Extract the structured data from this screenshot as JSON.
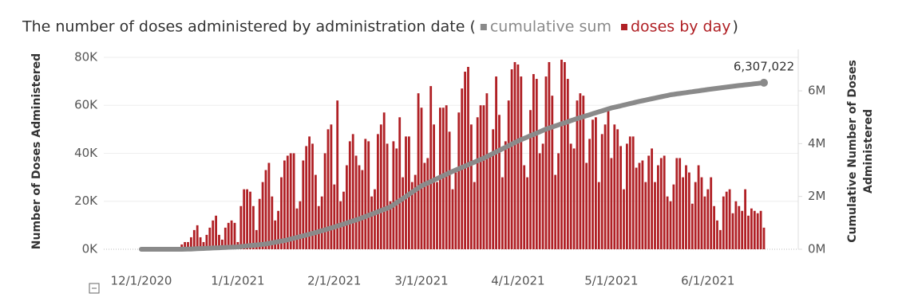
{
  "chart_data": {
    "type": "bar_line",
    "title": "The number of doses administered by administration date (",
    "title_close": ")",
    "ylabel": "Number of Doses Administered",
    "y2label": [
      "Cumulative Number of Doses",
      "Administered"
    ],
    "ylim": [
      0,
      83300
    ],
    "yticks": [
      {
        "value": 0,
        "label": "0K"
      },
      {
        "value": 20000,
        "label": "20K"
      },
      {
        "value": 40000,
        "label": "40K"
      },
      {
        "value": 60000,
        "label": "60K"
      },
      {
        "value": 80000,
        "label": "80K"
      }
    ],
    "y2lim": [
      0,
      7570000
    ],
    "y2ticks": [
      {
        "value": 0,
        "label": "0M"
      },
      {
        "value": 2000000,
        "label": "2M"
      },
      {
        "value": 4000000,
        "label": "4M"
      },
      {
        "value": 6000000,
        "label": "6M"
      }
    ],
    "grid": true,
    "xticks": [
      "12/1/2020",
      "1/1/2021",
      "2/1/2021",
      "3/1/2021",
      "4/1/2021",
      "5/1/2021",
      "6/1/2021"
    ],
    "x": [
      "12/1/2020",
      "12/2/2020",
      "12/3/2020",
      "12/4/2020",
      "12/5/2020",
      "12/6/2020",
      "12/7/2020",
      "12/8/2020",
      "12/9/2020",
      "12/10/2020",
      "12/11/2020",
      "12/12/2020",
      "12/13/2020",
      "12/14/2020",
      "12/15/2020",
      "12/16/2020",
      "12/17/2020",
      "12/18/2020",
      "12/19/2020",
      "12/20/2020",
      "12/21/2020",
      "12/22/2020",
      "12/23/2020",
      "12/24/2020",
      "12/25/2020",
      "12/26/2020",
      "12/27/2020",
      "12/28/2020",
      "12/29/2020",
      "12/30/2020",
      "12/31/2020",
      "1/1/2021",
      "1/2/2021",
      "1/3/2021",
      "1/4/2021",
      "1/5/2021",
      "1/6/2021",
      "1/7/2021",
      "1/8/2021",
      "1/9/2021",
      "1/10/2021",
      "1/11/2021",
      "1/12/2021",
      "1/13/2021",
      "1/14/2021",
      "1/15/2021",
      "1/16/2021",
      "1/17/2021",
      "1/18/2021",
      "1/19/2021",
      "1/20/2021",
      "1/21/2021",
      "1/22/2021",
      "1/23/2021",
      "1/24/2021",
      "1/25/2021",
      "1/26/2021",
      "1/27/2021",
      "1/28/2021",
      "1/29/2021",
      "1/30/2021",
      "1/31/2021",
      "2/1/2021",
      "2/2/2021",
      "2/3/2021",
      "2/4/2021",
      "2/5/2021",
      "2/6/2021",
      "2/7/2021",
      "2/8/2021",
      "2/9/2021",
      "2/10/2021",
      "2/11/2021",
      "2/12/2021",
      "2/13/2021",
      "2/14/2021",
      "2/15/2021",
      "2/16/2021",
      "2/17/2021",
      "2/18/2021",
      "2/19/2021",
      "2/20/2021",
      "2/21/2021",
      "2/22/2021",
      "2/23/2021",
      "2/24/2021",
      "2/25/2021",
      "2/26/2021",
      "2/27/2021",
      "2/28/2021",
      "3/1/2021",
      "3/2/2021",
      "3/3/2021",
      "3/4/2021",
      "3/5/2021",
      "3/6/2021",
      "3/7/2021",
      "3/8/2021",
      "3/9/2021",
      "3/10/2021",
      "3/11/2021",
      "3/12/2021",
      "3/13/2021",
      "3/14/2021",
      "3/15/2021",
      "3/16/2021",
      "3/17/2021",
      "3/18/2021",
      "3/19/2021",
      "3/20/2021",
      "3/21/2021",
      "3/22/2021",
      "3/23/2021",
      "3/24/2021",
      "3/25/2021",
      "3/26/2021",
      "3/27/2021",
      "3/28/2021",
      "3/29/2021",
      "3/30/2021",
      "3/31/2021",
      "4/1/2021",
      "4/2/2021",
      "4/3/2021",
      "4/4/2021",
      "4/5/2021",
      "4/6/2021",
      "4/7/2021",
      "4/8/2021",
      "4/9/2021",
      "4/10/2021",
      "4/11/2021",
      "4/12/2021",
      "4/13/2021",
      "4/14/2021",
      "4/15/2021",
      "4/16/2021",
      "4/17/2021",
      "4/18/2021",
      "4/19/2021",
      "4/20/2021",
      "4/21/2021",
      "4/22/2021",
      "4/23/2021",
      "4/24/2021",
      "4/25/2021",
      "4/26/2021",
      "4/27/2021",
      "4/28/2021",
      "4/29/2021",
      "4/30/2021",
      "5/1/2021",
      "5/2/2021",
      "5/3/2021",
      "5/4/2021",
      "5/5/2021",
      "5/6/2021",
      "5/7/2021",
      "5/8/2021",
      "5/9/2021",
      "5/10/2021",
      "5/11/2021",
      "5/12/2021",
      "5/13/2021",
      "5/14/2021",
      "5/15/2021",
      "5/16/2021",
      "5/17/2021",
      "5/18/2021",
      "5/19/2021",
      "5/20/2021",
      "5/21/2021",
      "5/22/2021",
      "5/23/2021",
      "5/24/2021",
      "5/25/2021",
      "5/26/2021",
      "5/27/2021",
      "5/28/2021",
      "5/29/2021",
      "5/30/2021",
      "5/31/2021",
      "6/1/2021",
      "6/2/2021",
      "6/3/2021",
      "6/4/2021",
      "6/5/2021",
      "6/6/2021",
      "6/7/2021",
      "6/8/2021",
      "6/9/2021",
      "6/10/2021",
      "6/11/2021",
      "6/12/2021",
      "6/13/2021",
      "6/14/2021",
      "6/15/2021",
      "6/16/2021",
      "6/17/2021",
      "6/18/2021",
      "6/19/2021"
    ],
    "series": [
      {
        "name": "cumulative sum",
        "color": "#8a8a8a",
        "axis": "y2",
        "kind": "line",
        "values": [
          0,
          0,
          0,
          0,
          0,
          0,
          0,
          0,
          0,
          0,
          0,
          0,
          0,
          0,
          2000,
          5000,
          10000,
          15000,
          21000,
          26000,
          31000,
          37000,
          42000,
          47000,
          53000,
          58000,
          63000,
          69000,
          74000,
          79000,
          85000,
          90000,
          102000,
          114000,
          127000,
          139000,
          151000,
          163000,
          176000,
          188000,
          200000,
          222000,
          243000,
          265000,
          287000,
          308000,
          330000,
          360000,
          390000,
          420000,
          450000,
          480000,
          510000,
          540000,
          570000,
          600000,
          634000,
          669000,
          703000,
          737000,
          771000,
          806000,
          840000,
          879000,
          918000,
          956000,
          995000,
          1034000,
          1073000,
          1111000,
          1150000,
          1195000,
          1240000,
          1285000,
          1330000,
          1375000,
          1420000,
          1465000,
          1510000,
          1555000,
          1600000,
          1680000,
          1760000,
          1840000,
          1920000,
          2000000,
          2080000,
          2160000,
          2240000,
          2320000,
          2400000,
          2455000,
          2510000,
          2565000,
          2620000,
          2675000,
          2730000,
          2785000,
          2840000,
          2895000,
          2950000,
          3000000,
          3050000,
          3100000,
          3150000,
          3200000,
          3250000,
          3300000,
          3350000,
          3400000,
          3450000,
          3509000,
          3568000,
          3627000,
          3686000,
          3745000,
          3805000,
          3864000,
          3923000,
          3982000,
          4041000,
          4100000,
          4150000,
          4200000,
          4250000,
          4300000,
          4350000,
          4400000,
          4450000,
          4500000,
          4550000,
          4590000,
          4630000,
          4670000,
          4710000,
          4750000,
          4790000,
          4830000,
          4870000,
          4910000,
          4950000,
          4986000,
          5023000,
          5059000,
          5095000,
          5132000,
          5168000,
          5205000,
          5241000,
          5277000,
          5314000,
          5350000,
          5378000,
          5406000,
          5433000,
          5461000,
          5489000,
          5517000,
          5544000,
          5572000,
          5600000,
          5625000,
          5650000,
          5675000,
          5700000,
          5725000,
          5750000,
          5775000,
          5800000,
          5825000,
          5850000,
          5867000,
          5883000,
          5900000,
          5917000,
          5933000,
          5950000,
          5967000,
          5983000,
          6000000,
          6017000,
          6033000,
          6050000,
          6065000,
          6080000,
          6095000,
          6110000,
          6125000,
          6140000,
          6155000,
          6170000,
          6185000,
          6200000,
          6213000,
          6227000,
          6240000,
          6253000,
          6267000,
          6280000,
          6293000,
          6307022
        ],
        "value_labels": [
          null,
          null,
          null,
          null,
          null,
          null,
          null,
          null,
          null,
          null,
          null,
          null,
          null,
          null,
          null,
          null,
          null,
          null,
          null,
          null,
          null,
          null,
          null,
          null,
          null,
          null,
          null,
          null,
          null,
          null,
          null,
          null,
          null,
          null,
          null,
          null,
          null,
          null,
          null,
          null,
          null,
          null,
          null,
          null,
          null,
          null,
          null,
          null,
          null,
          null,
          null,
          null,
          null,
          null,
          null,
          null,
          null,
          null,
          null,
          null,
          null,
          null,
          null,
          null,
          null,
          null,
          null,
          null,
          null,
          null,
          null,
          null,
          null,
          null,
          null,
          null,
          null,
          null,
          null,
          null,
          null,
          null,
          null,
          null,
          null,
          null,
          null,
          null,
          null,
          null,
          null,
          null,
          null,
          null,
          null,
          null,
          null,
          null,
          null,
          null,
          null,
          null,
          null,
          null,
          null,
          null,
          null,
          null,
          null,
          null,
          null,
          null,
          null,
          null,
          null,
          null,
          null,
          null,
          null,
          null,
          null,
          null,
          null,
          null,
          null,
          null,
          null,
          null,
          null,
          null,
          null,
          null,
          null,
          null,
          null,
          null,
          null,
          null,
          null,
          null,
          null,
          null,
          null,
          null,
          null,
          null,
          null,
          null,
          null,
          null,
          null,
          null,
          null,
          null,
          null,
          null,
          null,
          null,
          null,
          null,
          null,
          null,
          null,
          null,
          null,
          null,
          null,
          null,
          null,
          null,
          null,
          null,
          null,
          null,
          null,
          null,
          null,
          null,
          null,
          null,
          null,
          null,
          null,
          null,
          null,
          null,
          null,
          null,
          null,
          null,
          null,
          null,
          null,
          null,
          null,
          null,
          null,
          null,
          null,
          null,
          "6,307,022"
        ]
      },
      {
        "name": "doses by day",
        "color": "#b02025",
        "axis": "y",
        "kind": "bar",
        "values": [
          0,
          0,
          0,
          0,
          0,
          0,
          0,
          0,
          0,
          0,
          0,
          0,
          0,
          2000,
          3000,
          3000,
          5000,
          8000,
          10000,
          5000,
          3000,
          6000,
          9000,
          12000,
          14000,
          6000,
          4000,
          9000,
          11000,
          12000,
          11000,
          3000,
          18000,
          25000,
          25000,
          24000,
          18000,
          8000,
          21000,
          28000,
          33000,
          36000,
          22000,
          12000,
          16000,
          30000,
          37000,
          39000,
          40000,
          40000,
          17000,
          20000,
          37000,
          43000,
          47000,
          44000,
          31000,
          18000,
          22000,
          40000,
          50000,
          52000,
          27000,
          62000,
          20000,
          24000,
          35000,
          45000,
          48000,
          39000,
          35000,
          33000,
          46000,
          45000,
          22000,
          25000,
          48000,
          52000,
          57000,
          44000,
          20000,
          45000,
          42000,
          55000,
          30000,
          47000,
          47000,
          28000,
          31000,
          65000,
          59000,
          36000,
          38000,
          68000,
          52000,
          28000,
          59000,
          59000,
          60000,
          49000,
          25000,
          32000,
          57000,
          67000,
          74000,
          76000,
          52000,
          28000,
          55000,
          60000,
          60000,
          65000,
          40000,
          50000,
          72000,
          56000,
          30000,
          45000,
          62000,
          75000,
          78000,
          77000,
          72000,
          35000,
          30000,
          58000,
          73000,
          71000,
          40000,
          44000,
          72000,
          78000,
          64000,
          31000,
          40000,
          79000,
          78000,
          71000,
          44000,
          42000,
          62000,
          65000,
          64000,
          36000,
          46000,
          54000,
          55000,
          28000,
          48000,
          52000,
          58000,
          38000,
          52000,
          50000,
          43000,
          25000,
          44000,
          47000,
          47000,
          34000,
          36000,
          37000,
          28000,
          39000,
          42000,
          28000,
          35000,
          38000,
          39000,
          22000,
          20000,
          27000,
          38000,
          38000,
          30000,
          35000,
          32000,
          19000,
          28000,
          35000,
          30000,
          22000,
          25000,
          30000,
          18000,
          12000,
          8000,
          22000,
          24000,
          25000,
          15000,
          20000,
          18000,
          16000,
          25000,
          14000,
          17000,
          16000,
          15000,
          16000,
          9000
        ]
      }
    ]
  }
}
